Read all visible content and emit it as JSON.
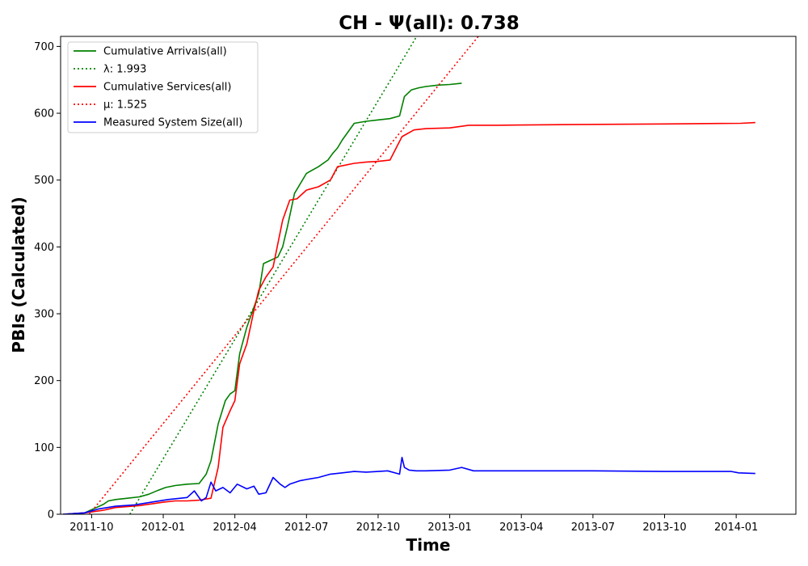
{
  "chart_data": {
    "type": "line",
    "title": "CH -  Ψ(all): 0.738",
    "xlabel": "Time",
    "ylabel": "PBIs (Calculated)",
    "xlim": [
      -1.3,
      29.5
    ],
    "ylim": [
      0,
      715
    ],
    "x_unit": "months since 2011-10",
    "xticks": [
      {
        "value": 0,
        "label": "2011-10"
      },
      {
        "value": 3,
        "label": "2012-01"
      },
      {
        "value": 6,
        "label": "2012-04"
      },
      {
        "value": 9,
        "label": "2012-07"
      },
      {
        "value": 12,
        "label": "2012-10"
      },
      {
        "value": 15,
        "label": "2013-01"
      },
      {
        "value": 18,
        "label": "2013-04"
      },
      {
        "value": 21,
        "label": "2013-07"
      },
      {
        "value": 24,
        "label": "2013-10"
      },
      {
        "value": 27,
        "label": "2014-01"
      }
    ],
    "yticks": [
      0,
      100,
      200,
      300,
      400,
      500,
      600,
      700
    ],
    "grid": false,
    "legend_position": "top-left",
    "series": [
      {
        "name": "Cumulative Arrivals(all)",
        "color": "#008000",
        "style": "solid",
        "x": [
          -1.2,
          -0.3,
          0.2,
          0.5,
          0.7,
          1.0,
          1.5,
          2.0,
          2.4,
          2.8,
          3.1,
          3.5,
          4.0,
          4.5,
          4.8,
          5.0,
          5.3,
          5.6,
          5.8,
          6.0,
          6.2,
          6.5,
          7.0,
          7.2,
          7.5,
          7.8,
          8.0,
          8.2,
          8.5,
          9.0,
          9.5,
          9.9,
          10.1,
          10.3,
          10.5,
          11.0,
          11.5,
          12.0,
          12.5,
          12.9,
          13.1,
          13.4,
          13.7,
          14.0,
          14.5,
          15.0,
          15.5
        ],
        "y": [
          0,
          2,
          10,
          15,
          20,
          22,
          24,
          26,
          30,
          36,
          40,
          43,
          45,
          46,
          60,
          80,
          135,
          170,
          180,
          185,
          240,
          280,
          330,
          375,
          380,
          385,
          400,
          430,
          480,
          510,
          520,
          530,
          540,
          548,
          560,
          585,
          588,
          590,
          592,
          596,
          625,
          635,
          638,
          640,
          642,
          643,
          645
        ]
      },
      {
        "name": "λ: 1.993",
        "color": "#008000",
        "style": "dotted",
        "x": [
          1.6,
          13.7
        ],
        "y": [
          0,
          720
        ]
      },
      {
        "name": "Cumulative Services(all)",
        "color": "#ff0000",
        "style": "solid",
        "x": [
          -1.2,
          -0.3,
          0.5,
          1.0,
          2.0,
          2.6,
          3.0,
          3.5,
          4.0,
          4.5,
          5.0,
          5.3,
          5.5,
          5.8,
          6.0,
          6.2,
          6.5,
          6.8,
          7.0,
          7.3,
          7.6,
          8.0,
          8.3,
          8.6,
          9.0,
          9.5,
          10.0,
          10.3,
          11.0,
          11.5,
          12.0,
          12.5,
          13.0,
          13.5,
          14.0,
          15.0,
          15.8,
          17.0,
          20.0,
          24.0,
          27.2,
          27.8
        ],
        "y": [
          0,
          2,
          6,
          10,
          13,
          16,
          18,
          20,
          20,
          21,
          24,
          70,
          130,
          155,
          170,
          225,
          255,
          305,
          335,
          355,
          370,
          440,
          470,
          472,
          485,
          490,
          500,
          520,
          525,
          527,
          528,
          530,
          565,
          575,
          577,
          578,
          582,
          582,
          583,
          584,
          585,
          586
        ]
      },
      {
        "name": "μ: 1.525",
        "color": "#ff0000",
        "style": "dotted",
        "x": [
          -0.1,
          16.2
        ],
        "y": [
          0,
          715
        ]
      },
      {
        "name": "Measured System Size(all)",
        "color": "#0000ff",
        "style": "solid",
        "x": [
          -1.2,
          -0.3,
          0.3,
          1.0,
          1.8,
          2.5,
          3.2,
          4.0,
          4.3,
          4.6,
          4.8,
          5.0,
          5.2,
          5.5,
          5.8,
          6.1,
          6.5,
          6.8,
          7.0,
          7.3,
          7.6,
          7.9,
          8.1,
          8.3,
          8.7,
          9.0,
          9.5,
          10.0,
          10.5,
          11.0,
          11.5,
          12.0,
          12.4,
          12.9,
          13.0,
          13.1,
          13.3,
          13.6,
          14.0,
          15.0,
          15.5,
          16.0,
          18.0,
          21.0,
          24.0,
          26.8,
          27.1,
          27.8
        ],
        "y": [
          0,
          2,
          8,
          12,
          14,
          18,
          22,
          25,
          35,
          20,
          25,
          48,
          35,
          40,
          32,
          45,
          38,
          42,
          30,
          32,
          55,
          45,
          40,
          45,
          50,
          52,
          55,
          60,
          62,
          64,
          63,
          64,
          65,
          60,
          85,
          70,
          66,
          65,
          65,
          66,
          70,
          65,
          65,
          65,
          64,
          64,
          62,
          61
        ]
      }
    ]
  }
}
